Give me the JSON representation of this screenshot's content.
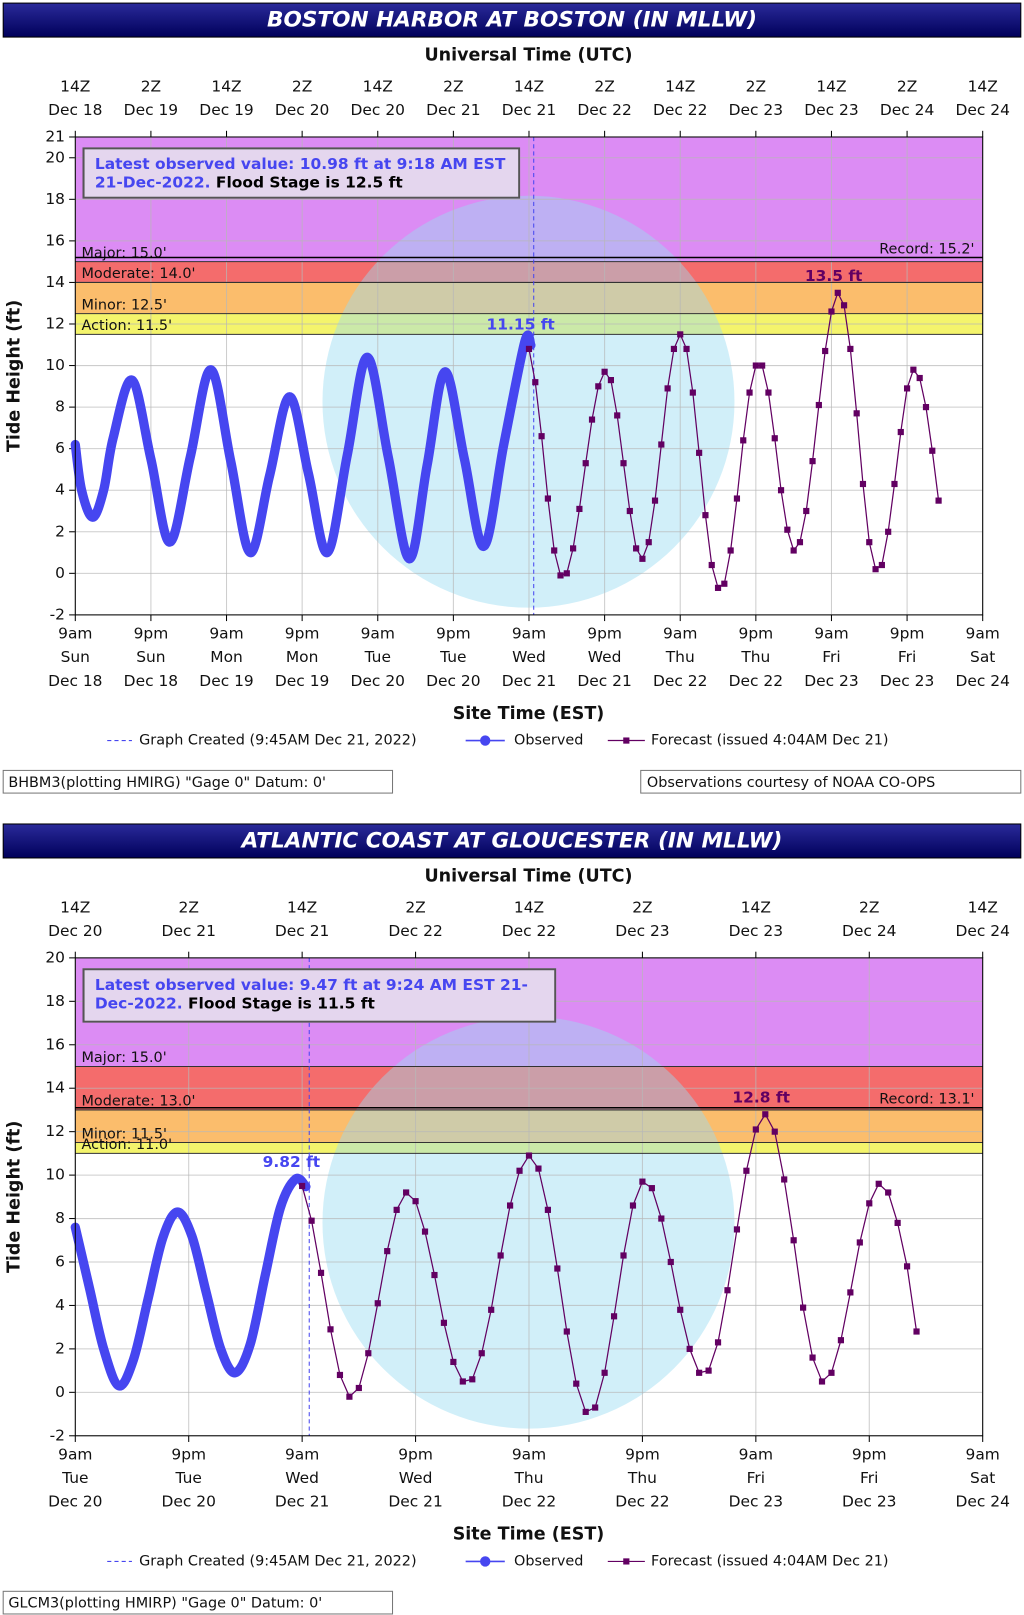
{
  "chart_data": [
    {
      "type": "line",
      "title": "BOSTON HARBOR AT BOSTON (IN MLLW)",
      "x2label": "Universal Time (UTC)",
      "xlabel": "Site Time (EST)",
      "ylabel": "Tide Height (ft)",
      "xlim": [
        "Dec 18 09:00",
        "Dec 24 09:00"
      ],
      "xticks": [
        {
          "value": "Dec 18 09:00",
          "label": "9am\nSun\nDec 18"
        },
        {
          "value": "Dec 18 21:00",
          "label": "9pm\nSun\nDec 18"
        },
        {
          "value": "Dec 19 09:00",
          "label": "9am\nMon\nDec 19"
        },
        {
          "value": "Dec 19 21:00",
          "label": "9pm\nMon\nDec 19"
        },
        {
          "value": "Dec 20 09:00",
          "label": "9am\nTue\nDec 20"
        },
        {
          "value": "Dec 20 21:00",
          "label": "9pm\nTue\nDec 20"
        },
        {
          "value": "Dec 21 09:00",
          "label": "9am\nWed\nDec 21"
        },
        {
          "value": "Dec 21 21:00",
          "label": "9pm\nWed\nDec 21"
        },
        {
          "value": "Dec 22 09:00",
          "label": "9am\nThu\nDec 22"
        },
        {
          "value": "Dec 22 21:00",
          "label": "9pm\nThu\nDec 22"
        },
        {
          "value": "Dec 23 09:00",
          "label": "9am\nFri\nDec 23"
        },
        {
          "value": "Dec 23 21:00",
          "label": "9pm\nFri\nDec 23"
        },
        {
          "value": "Dec 24 09:00",
          "label": "9am\nSat\nDec 24"
        }
      ],
      "x2lim": [
        "Dec 18 14:00",
        "Dec 24 14:00"
      ],
      "x2ticks": [
        {
          "value": "Dec 18 14:00",
          "label": "14Z\nDec 18"
        },
        {
          "value": "Dec 19 02:00",
          "label": "2Z\nDec 19"
        },
        {
          "value": "Dec 19 14:00",
          "label": "14Z\nDec 19"
        },
        {
          "value": "Dec 20 02:00",
          "label": "2Z\nDec 20"
        },
        {
          "value": "Dec 20 14:00",
          "label": "14Z\nDec 20"
        },
        {
          "value": "Dec 21 02:00",
          "label": "2Z\nDec 21"
        },
        {
          "value": "Dec 21 14:00",
          "label": "14Z\nDec 21"
        },
        {
          "value": "Dec 22 02:00",
          "label": "2Z\nDec 22"
        },
        {
          "value": "Dec 22 14:00",
          "label": "14Z\nDec 22"
        },
        {
          "value": "Dec 23 02:00",
          "label": "2Z\nDec 23"
        },
        {
          "value": "Dec 23 14:00",
          "label": "14Z\nDec 23"
        },
        {
          "value": "Dec 24 02:00",
          "label": "2Z\nDec 24"
        },
        {
          "value": "Dec 24 14:00",
          "label": "14Z\nDec 24"
        }
      ],
      "ylim": [
        -2,
        21
      ],
      "yticks": [
        -2,
        0,
        2,
        4,
        6,
        8,
        10,
        12,
        14,
        16,
        18,
        20,
        21
      ],
      "grid": true,
      "flood_categories": [
        {
          "value": 15,
          "label": "Major: 15.0'",
          "color": "#dc8cf4"
        },
        {
          "value": 14,
          "label": "Moderate: 14.0'",
          "color": "#f46c6c"
        },
        {
          "value": 12.5,
          "label": "Minor: 12.5'",
          "color": "#fbbd6c"
        },
        {
          "value": 11.5,
          "label": "Action: 11.5'",
          "color": "#f4f46c"
        }
      ],
      "record": {
        "value": 15.2,
        "label": "Record: 15.2'"
      },
      "latest_observed": "Latest observed value: 10.98 ft at 9:18 AM EST 21-Dec-2022.",
      "flood_stage": "Flood Stage is 12.5 ft",
      "graph_created": {
        "x": "Dec 21 09:45",
        "label": "Graph Created (9:45AM Dec 21, 2022)"
      },
      "series": [
        {
          "name": "Observed",
          "color": "#4646f0",
          "x": [
            "Dec 18 09:00",
            "Dec 18 10:00",
            "Dec 18 11:45",
            "Dec 18 13:30",
            "Dec 18 15:00",
            "Dec 18 18:00",
            "Dec 18 21:00",
            "Dec 19 00:00",
            "Dec 19 03:15",
            "Dec 19 06:30",
            "Dec 19 09:40",
            "Dec 19 12:45",
            "Dec 19 15:50",
            "Dec 19 19:00",
            "Dec 19 22:00",
            "Dec 20 01:00",
            "Dec 20 04:10",
            "Dec 20 07:20",
            "Dec 20 10:40",
            "Dec 20 14:00",
            "Dec 20 16:50",
            "Dec 20 19:40",
            "Dec 20 22:45",
            "Dec 21 01:50",
            "Dec 21 05:00",
            "Dec 21 08:20",
            "Dec 21 09:18"
          ],
          "values": [
            6.2,
            4.0,
            2.7,
            4.0,
            6.5,
            9.3,
            5.5,
            1.5,
            5.6,
            9.8,
            5.4,
            1.0,
            4.7,
            8.5,
            4.8,
            1.0,
            5.7,
            10.4,
            5.6,
            0.7,
            5.2,
            9.7,
            5.5,
            1.3,
            6.2,
            11.15,
            10.98
          ],
          "value_labels": [
            null,
            null,
            null,
            null,
            null,
            null,
            null,
            null,
            null,
            null,
            null,
            null,
            null,
            null,
            null,
            null,
            null,
            null,
            null,
            null,
            null,
            null,
            null,
            null,
            null,
            "11.15 ft",
            null
          ]
        },
        {
          "name": "Forecast (issued 4:04AM Dec 21)",
          "color": "#620062",
          "x": [
            "Dec 21 09:00",
            "Dec 21 10:00",
            "Dec 21 11:00",
            "Dec 21 12:00",
            "Dec 21 13:00",
            "Dec 21 14:00",
            "Dec 21 15:00",
            "Dec 21 16:00",
            "Dec 21 17:00",
            "Dec 21 18:00",
            "Dec 21 19:00",
            "Dec 21 20:00",
            "Dec 21 21:00",
            "Dec 21 22:00",
            "Dec 21 23:00",
            "Dec 22 00:00",
            "Dec 22 01:00",
            "Dec 22 02:00",
            "Dec 22 03:00",
            "Dec 22 04:00",
            "Dec 22 05:00",
            "Dec 22 06:00",
            "Dec 22 07:00",
            "Dec 22 08:00",
            "Dec 22 09:00",
            "Dec 22 10:00",
            "Dec 22 11:00",
            "Dec 22 12:00",
            "Dec 22 13:00",
            "Dec 22 14:00",
            "Dec 22 15:00",
            "Dec 22 16:00",
            "Dec 22 17:00",
            "Dec 22 18:00",
            "Dec 22 19:00",
            "Dec 22 20:00",
            "Dec 22 21:00",
            "Dec 22 22:00",
            "Dec 22 23:00",
            "Dec 23 00:00",
            "Dec 23 01:00",
            "Dec 23 02:00",
            "Dec 23 03:00",
            "Dec 23 04:00",
            "Dec 23 05:00",
            "Dec 23 06:00",
            "Dec 23 07:00",
            "Dec 23 08:00",
            "Dec 23 09:00",
            "Dec 23 10:00",
            "Dec 23 11:00",
            "Dec 23 12:00",
            "Dec 23 13:00",
            "Dec 23 14:00",
            "Dec 23 15:00",
            "Dec 23 16:00",
            "Dec 23 17:00",
            "Dec 23 18:00",
            "Dec 23 19:00",
            "Dec 23 20:00",
            "Dec 23 21:00",
            "Dec 23 22:00",
            "Dec 23 23:00",
            "Dec 24 00:00",
            "Dec 24 01:00",
            "Dec 24 02:00"
          ],
          "values": [
            10.8,
            9.2,
            6.6,
            3.6,
            1.1,
            -0.1,
            0.0,
            1.2,
            3.1,
            5.3,
            7.4,
            9.0,
            9.7,
            9.3,
            7.6,
            5.3,
            3.0,
            1.2,
            0.7,
            1.5,
            3.5,
            6.2,
            8.9,
            10.8,
            11.5,
            10.8,
            8.7,
            5.8,
            2.8,
            0.4,
            -0.7,
            -0.5,
            1.1,
            3.6,
            6.4,
            8.7,
            10.0,
            10.0,
            8.7,
            6.5,
            4.0,
            2.1,
            1.1,
            1.5,
            3.0,
            5.4,
            8.1,
            10.7,
            12.6,
            13.5,
            12.9,
            10.8,
            7.7,
            4.3,
            1.5,
            0.2,
            0.4,
            2.0,
            4.3,
            6.8,
            8.9,
            9.8,
            9.4,
            8.0,
            5.9,
            3.5
          ],
          "value_labels": [
            null,
            null,
            null,
            null,
            null,
            null,
            null,
            null,
            null,
            null,
            null,
            null,
            null,
            null,
            null,
            null,
            null,
            null,
            null,
            null,
            null,
            null,
            null,
            null,
            null,
            null,
            null,
            null,
            null,
            null,
            null,
            null,
            null,
            null,
            null,
            null,
            null,
            null,
            null,
            null,
            null,
            null,
            null,
            null,
            null,
            null,
            null,
            null,
            null,
            "13.5 ft",
            null,
            null,
            null,
            null,
            null,
            null,
            null,
            null,
            null,
            null,
            null,
            null,
            null,
            null,
            null,
            null
          ]
        }
      ],
      "footer_left": "BHBM3(plotting HMIRG) \"Gage 0\" Datum: 0'",
      "footer_right": "Observations courtesy of NOAA CO-OPS"
    },
    {
      "type": "line",
      "title": "ATLANTIC COAST AT GLOUCESTER (IN MLLW)",
      "x2label": "Universal Time (UTC)",
      "xlabel": "Site Time (EST)",
      "ylabel": "Tide Height (ft)",
      "xlim": [
        "Dec 20 09:00",
        "Dec 24 09:00"
      ],
      "xticks": [
        {
          "value": "Dec 20 09:00",
          "label": "9am\nTue\nDec 20"
        },
        {
          "value": "Dec 20 21:00",
          "label": "9pm\nTue\nDec 20"
        },
        {
          "value": "Dec 21 09:00",
          "label": "9am\nWed\nDec 21"
        },
        {
          "value": "Dec 21 21:00",
          "label": "9pm\nWed\nDec 21"
        },
        {
          "value": "Dec 22 09:00",
          "label": "9am\nThu\nDec 22"
        },
        {
          "value": "Dec 22 21:00",
          "label": "9pm\nThu\nDec 22"
        },
        {
          "value": "Dec 23 09:00",
          "label": "9am\nFri\nDec 23"
        },
        {
          "value": "Dec 23 21:00",
          "label": "9pm\nFri\nDec 23"
        },
        {
          "value": "Dec 24 09:00",
          "label": "9am\nSat\nDec 24"
        }
      ],
      "x2lim": [
        "Dec 20 14:00",
        "Dec 24 14:00"
      ],
      "x2ticks": [
        {
          "value": "Dec 20 14:00",
          "label": "14Z\nDec 20"
        },
        {
          "value": "Dec 21 02:00",
          "label": "2Z\nDec 21"
        },
        {
          "value": "Dec 21 14:00",
          "label": "14Z\nDec 21"
        },
        {
          "value": "Dec 22 02:00",
          "label": "2Z\nDec 22"
        },
        {
          "value": "Dec 22 14:00",
          "label": "14Z\nDec 22"
        },
        {
          "value": "Dec 23 02:00",
          "label": "2Z\nDec 23"
        },
        {
          "value": "Dec 23 14:00",
          "label": "14Z\nDec 23"
        },
        {
          "value": "Dec 24 02:00",
          "label": "2Z\nDec 24"
        },
        {
          "value": "Dec 24 14:00",
          "label": "14Z\nDec 24"
        }
      ],
      "ylim": [
        -2,
        20
      ],
      "yticks": [
        -2,
        0,
        2,
        4,
        6,
        8,
        10,
        12,
        14,
        16,
        18,
        20
      ],
      "grid": true,
      "flood_categories": [
        {
          "value": 15,
          "label": "Major: 15.0'",
          "color": "#dc8cf4"
        },
        {
          "value": 13,
          "label": "Moderate: 13.0'",
          "color": "#f46c6c"
        },
        {
          "value": 11.5,
          "label": "Minor: 11.5'",
          "color": "#fbbd6c"
        },
        {
          "value": 11,
          "label": "Action: 11.0'",
          "color": "#f4f46c"
        }
      ],
      "record": {
        "value": 13.1,
        "label": "Record: 13.1'"
      },
      "latest_observed": "Latest observed value: 9.47 ft at 9:24 AM EST 21-Dec-2022.",
      "flood_stage": "Flood Stage is 11.5 ft",
      "graph_created": {
        "x": "Dec 21 09:45",
        "label": "Graph Created (9:45AM Dec 21, 2022)"
      },
      "series": [
        {
          "name": "Observed",
          "color": "#4646f0",
          "x": [
            "Dec 20 09:00",
            "Dec 20 10:30",
            "Dec 20 12:00",
            "Dec 20 13:36",
            "Dec 20 15:09",
            "Dec 20 16:42",
            "Dec 20 18:15",
            "Dec 20 19:48",
            "Dec 20 21:20",
            "Dec 20 22:51",
            "Dec 21 00:23",
            "Dec 21 01:54",
            "Dec 21 03:30",
            "Dec 21 05:06",
            "Dec 21 06:42",
            "Dec 21 08:18",
            "Dec 21 09:24"
          ],
          "values": [
            7.6,
            4.8,
            2.0,
            0.3,
            1.5,
            4.3,
            7.1,
            8.3,
            7.2,
            4.6,
            2.0,
            0.9,
            2.2,
            5.4,
            8.5,
            9.82,
            9.47
          ],
          "value_labels": [
            null,
            null,
            null,
            null,
            null,
            null,
            null,
            null,
            null,
            null,
            null,
            null,
            null,
            null,
            null,
            "9.82 ft",
            null
          ]
        },
        {
          "name": "Forecast (issued 4:04AM Dec 21)",
          "color": "#620062",
          "x": [
            "Dec 21 09:00",
            "Dec 21 10:00",
            "Dec 21 11:00",
            "Dec 21 12:00",
            "Dec 21 13:00",
            "Dec 21 14:00",
            "Dec 21 15:00",
            "Dec 21 16:00",
            "Dec 21 17:00",
            "Dec 21 18:00",
            "Dec 21 19:00",
            "Dec 21 20:00",
            "Dec 21 21:00",
            "Dec 21 22:00",
            "Dec 21 23:00",
            "Dec 22 00:00",
            "Dec 22 01:00",
            "Dec 22 02:00",
            "Dec 22 03:00",
            "Dec 22 04:00",
            "Dec 22 05:00",
            "Dec 22 06:00",
            "Dec 22 07:00",
            "Dec 22 08:00",
            "Dec 22 09:00",
            "Dec 22 10:00",
            "Dec 22 11:00",
            "Dec 22 12:00",
            "Dec 22 13:00",
            "Dec 22 14:00",
            "Dec 22 15:00",
            "Dec 22 16:00",
            "Dec 22 17:00",
            "Dec 22 18:00",
            "Dec 22 19:00",
            "Dec 22 20:00",
            "Dec 22 21:00",
            "Dec 22 22:00",
            "Dec 22 23:00",
            "Dec 23 00:00",
            "Dec 23 01:00",
            "Dec 23 02:00",
            "Dec 23 03:00",
            "Dec 23 04:00",
            "Dec 23 05:00",
            "Dec 23 06:00",
            "Dec 23 07:00",
            "Dec 23 08:00",
            "Dec 23 09:00",
            "Dec 23 10:00",
            "Dec 23 11:00",
            "Dec 23 12:00",
            "Dec 23 13:00",
            "Dec 23 14:00",
            "Dec 23 15:00",
            "Dec 23 16:00",
            "Dec 23 17:00",
            "Dec 23 18:00",
            "Dec 23 19:00",
            "Dec 23 20:00",
            "Dec 23 21:00",
            "Dec 23 22:00",
            "Dec 23 23:00",
            "Dec 24 00:00",
            "Dec 24 01:00",
            "Dec 24 02:00"
          ],
          "values": [
            9.5,
            7.9,
            5.5,
            2.9,
            0.8,
            -0.2,
            0.2,
            1.8,
            4.1,
            6.5,
            8.4,
            9.2,
            8.8,
            7.4,
            5.4,
            3.2,
            1.4,
            0.5,
            0.6,
            1.8,
            3.8,
            6.3,
            8.6,
            10.2,
            10.9,
            10.3,
            8.4,
            5.7,
            2.8,
            0.4,
            -0.9,
            -0.7,
            0.9,
            3.5,
            6.3,
            8.6,
            9.7,
            9.4,
            8.0,
            6.0,
            3.8,
            2.0,
            0.9,
            1.0,
            2.3,
            4.7,
            7.5,
            10.2,
            12.1,
            12.8,
            12.0,
            9.8,
            7.0,
            3.9,
            1.6,
            0.5,
            0.9,
            2.4,
            4.6,
            6.9,
            8.7,
            9.6,
            9.2,
            7.8,
            5.8,
            2.8
          ],
          "value_labels": [
            null,
            null,
            null,
            null,
            null,
            null,
            null,
            null,
            null,
            null,
            null,
            null,
            null,
            null,
            null,
            null,
            null,
            null,
            null,
            null,
            null,
            null,
            null,
            null,
            null,
            null,
            null,
            null,
            null,
            null,
            null,
            null,
            null,
            null,
            null,
            null,
            null,
            null,
            null,
            null,
            null,
            null,
            null,
            null,
            null,
            null,
            null,
            null,
            null,
            "12.8 ft",
            null,
            null,
            null,
            null,
            null,
            null,
            null,
            null,
            null,
            null,
            null,
            null,
            null,
            null,
            null,
            null
          ]
        }
      ],
      "footer_left": "GLCM3(plotting HMIRP) \"Gage 0\" Datum: 0'"
    }
  ]
}
